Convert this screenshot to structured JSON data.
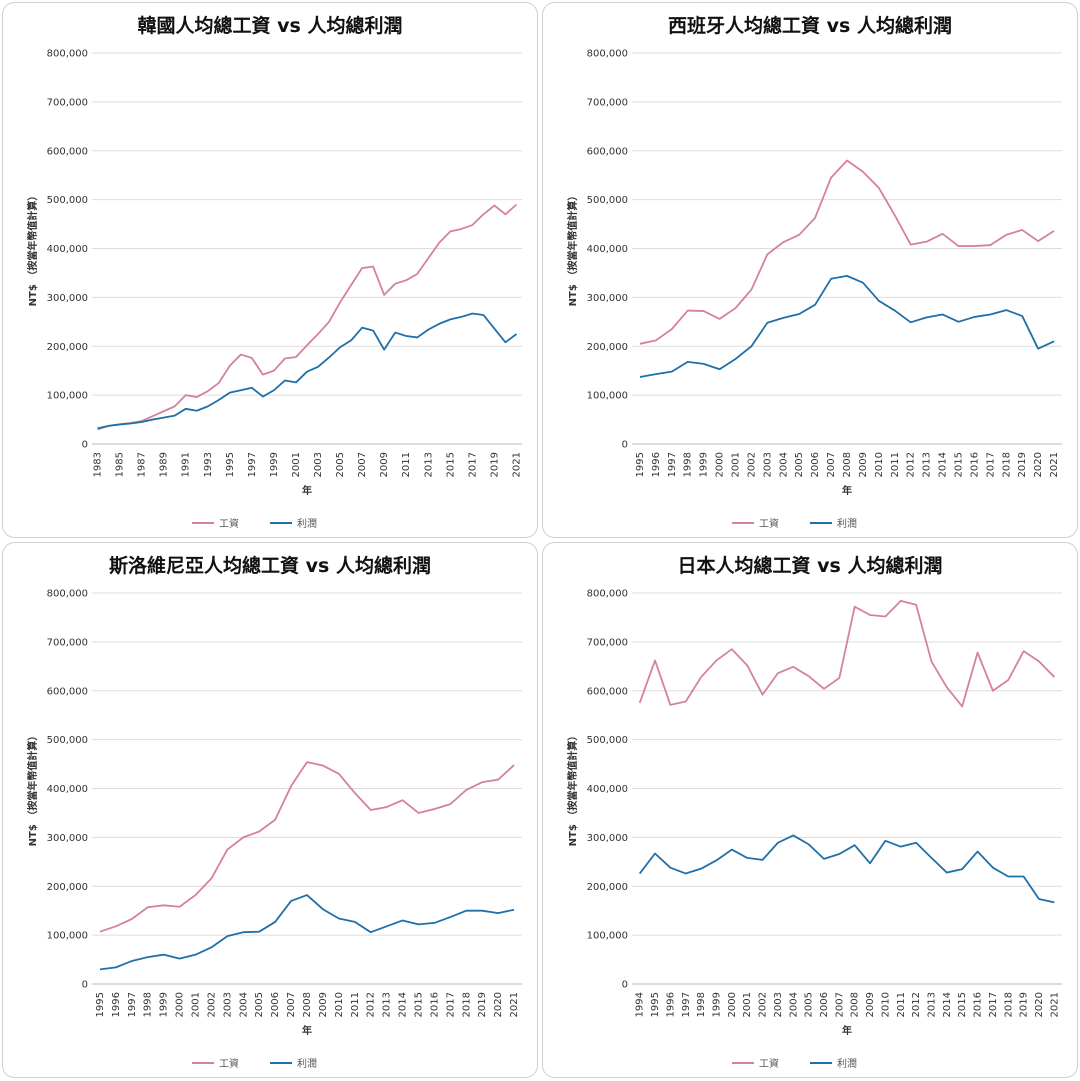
{
  "chart_data": [
    {
      "type": "line",
      "title": "韓國人均總工資 vs 人均總利潤",
      "x_label": "年",
      "y_label": "NT$ （按當年幣值計算）",
      "categories": [
        "1983",
        null,
        "1985",
        null,
        "1987",
        null,
        "1989",
        null,
        "1991",
        null,
        "1993",
        null,
        "1995",
        null,
        "1997",
        null,
        "1999",
        null,
        "2001",
        null,
        "2003",
        null,
        "2005",
        null,
        "2007",
        null,
        "2009",
        null,
        "2011",
        null,
        "2013",
        null,
        "2015",
        null,
        "2017",
        null,
        "2019",
        null,
        "2021"
      ],
      "series": [
        {
          "name": "工資",
          "color": "#d6819c",
          "values": [
            30000,
            37000,
            40000,
            43000,
            47000,
            57000,
            67000,
            77000,
            100000,
            96000,
            108000,
            125000,
            160000,
            183000,
            176000,
            142000,
            150000,
            175000,
            178000,
            202000,
            225000,
            250000,
            290000,
            325000,
            360000,
            363000,
            305000,
            328000,
            335000,
            348000,
            380000,
            412000,
            435000,
            440000,
            448000,
            470000,
            488000,
            470000,
            490000
          ]
        },
        {
          "name": "利潤",
          "color": "#1f6fa8",
          "values": [
            32000,
            37000,
            40000,
            42000,
            45000,
            50000,
            54000,
            58000,
            72000,
            68000,
            77000,
            90000,
            105000,
            110000,
            115000,
            97000,
            110000,
            130000,
            126000,
            148000,
            158000,
            177000,
            198000,
            212000,
            238000,
            232000,
            193000,
            228000,
            221000,
            218000,
            234000,
            246000,
            255000,
            260000,
            267000,
            264000,
            236000,
            208000,
            225000
          ]
        }
      ],
      "ylim": [
        0,
        800000
      ],
      "yticks": [
        0,
        {
          "value": 100000,
          "label": "100,000"
        },
        {
          "value": 200000,
          "label": "200,000"
        },
        {
          "value": 300000,
          "label": "300,000"
        },
        {
          "value": 400000,
          "label": "400,000"
        },
        {
          "value": 500000,
          "label": "500,000"
        },
        {
          "value": 600000,
          "label": "600,000"
        },
        {
          "value": 700000,
          "label": "700,000"
        },
        {
          "value": 800000,
          "label": "800,000"
        }
      ],
      "grid": true,
      "legend": "bottom"
    },
    {
      "type": "line",
      "title": "西班牙人均總工資 vs 人均總利潤",
      "x_label": "年",
      "y_label": "NT$ （按當年幣值計算）",
      "categories": [
        "1995",
        "1996",
        "1997",
        "1998",
        "1999",
        "2000",
        "2001",
        "2002",
        "2003",
        "2004",
        "2005",
        "2006",
        "2007",
        "2008",
        "2009",
        "2010",
        "2011",
        "2012",
        "2013",
        "2014",
        "2015",
        "2016",
        "2017",
        "2018",
        "2019",
        "2020",
        "2021"
      ],
      "series": [
        {
          "name": "工資",
          "color": "#d6819c",
          "values": [
            205000,
            212000,
            235000,
            273000,
            272000,
            256000,
            278000,
            316000,
            388000,
            413000,
            428000,
            463000,
            545000,
            580000,
            557000,
            524000,
            468000,
            408000,
            414000,
            430000,
            405000,
            405000,
            407000,
            428000,
            438000,
            415000,
            436000
          ]
        },
        {
          "name": "利潤",
          "color": "#1f6fa8",
          "values": [
            137000,
            143000,
            148000,
            168000,
            164000,
            153000,
            174000,
            200000,
            248000,
            258000,
            266000,
            285000,
            338000,
            344000,
            330000,
            293000,
            273000,
            249000,
            259000,
            265000,
            250000,
            260000,
            265000,
            274000,
            262000,
            195000,
            210000
          ]
        }
      ],
      "ylim": [
        0,
        800000
      ],
      "yticks": [
        0,
        {
          "value": 100000,
          "label": "100,000"
        },
        {
          "value": 200000,
          "label": "200,000"
        },
        {
          "value": 300000,
          "label": "300,000"
        },
        {
          "value": 400000,
          "label": "400,000"
        },
        {
          "value": 500000,
          "label": "500,000"
        },
        {
          "value": 600000,
          "label": "600,000"
        },
        {
          "value": 700000,
          "label": "700,000"
        },
        {
          "value": 800000,
          "label": "800,000"
        }
      ],
      "grid": true,
      "legend": "bottom"
    },
    {
      "type": "line",
      "title": "斯洛維尼亞人均總工資 vs 人均總利潤",
      "x_label": "年",
      "y_label": "NT$ （按當年幣值計算）",
      "categories": [
        "1995",
        "1996",
        "1997",
        "1998",
        "1999",
        "2000",
        "2001",
        "2002",
        "2003",
        "2004",
        "2005",
        "2006",
        "2007",
        "2008",
        "2009",
        "2010",
        "2011",
        "2012",
        "2013",
        "2014",
        "2015",
        "2016",
        "2017",
        "2018",
        "2019",
        "2020",
        "2021"
      ],
      "series": [
        {
          "name": "工資",
          "color": "#d6819c",
          "values": [
            107000,
            118000,
            133000,
            157000,
            161000,
            158000,
            182000,
            216000,
            275000,
            300000,
            312000,
            336000,
            405000,
            454000,
            447000,
            430000,
            391000,
            356000,
            362000,
            376000,
            350000,
            358000,
            368000,
            397000,
            413000,
            418000,
            448000
          ]
        },
        {
          "name": "利潤",
          "color": "#1f6fa8",
          "values": [
            30000,
            34000,
            47000,
            55000,
            60000,
            52000,
            60000,
            75000,
            98000,
            106000,
            107000,
            127000,
            170000,
            182000,
            153000,
            134000,
            127000,
            106000,
            118000,
            130000,
            122000,
            125000,
            137000,
            150000,
            150000,
            145000,
            152000
          ]
        }
      ],
      "ylim": [
        0,
        800000
      ],
      "yticks": [
        0,
        {
          "value": 100000,
          "label": "100,000"
        },
        {
          "value": 200000,
          "label": "200,000"
        },
        {
          "value": 300000,
          "label": "300,000"
        },
        {
          "value": 400000,
          "label": "400,000"
        },
        {
          "value": 500000,
          "label": "500,000"
        },
        {
          "value": 600000,
          "label": "600,000"
        },
        {
          "value": 700000,
          "label": "700,000"
        },
        {
          "value": 800000,
          "label": "800,000"
        }
      ],
      "grid": true,
      "legend": "bottom"
    },
    {
      "type": "line",
      "title": "日本人均總工資 vs 人均總利潤",
      "x_label": "年",
      "y_label": "NT$ （按當年幣值計算）",
      "categories": [
        "1994",
        "1995",
        "1996",
        "1997",
        "1998",
        "1999",
        "2000",
        "2001",
        "2002",
        "2003",
        "2004",
        "2005",
        "2006",
        "2007",
        "2008",
        "2009",
        "2010",
        "2011",
        "2012",
        "2013",
        "2014",
        "2015",
        "2016",
        "2017",
        "2018",
        "2019",
        "2020",
        "2021"
      ],
      "series": [
        {
          "name": "工資",
          "color": "#d6819c",
          "values": [
            575000,
            662000,
            571000,
            578000,
            628000,
            662000,
            685000,
            652000,
            592000,
            636000,
            649000,
            630000,
            604000,
            626000,
            772000,
            755000,
            752000,
            784000,
            776000,
            660000,
            607000,
            568000,
            678000,
            600000,
            622000,
            681000,
            660000,
            628000
          ]
        },
        {
          "name": "利潤",
          "color": "#1f6fa8",
          "values": [
            226000,
            267000,
            238000,
            226000,
            236000,
            253000,
            275000,
            258000,
            254000,
            289000,
            304000,
            286000,
            256000,
            266000,
            284000,
            247000,
            293000,
            281000,
            289000,
            258000,
            228000,
            235000,
            271000,
            238000,
            220000,
            220000,
            174000,
            167000
          ]
        }
      ],
      "ylim": [
        0,
        800000
      ],
      "yticks": [
        0,
        {
          "value": 100000,
          "label": "100,000"
        },
        {
          "value": 200000,
          "label": "200,000"
        },
        {
          "value": 300000,
          "label": "300,000"
        },
        {
          "value": 400000,
          "label": "400,000"
        },
        {
          "value": 500000,
          "label": "500,000"
        },
        {
          "value": 600000,
          "label": "600,000"
        },
        {
          "value": 700000,
          "label": "700,000"
        },
        {
          "value": 800000,
          "label": "800,000"
        }
      ],
      "grid": true,
      "legend": "bottom"
    }
  ]
}
